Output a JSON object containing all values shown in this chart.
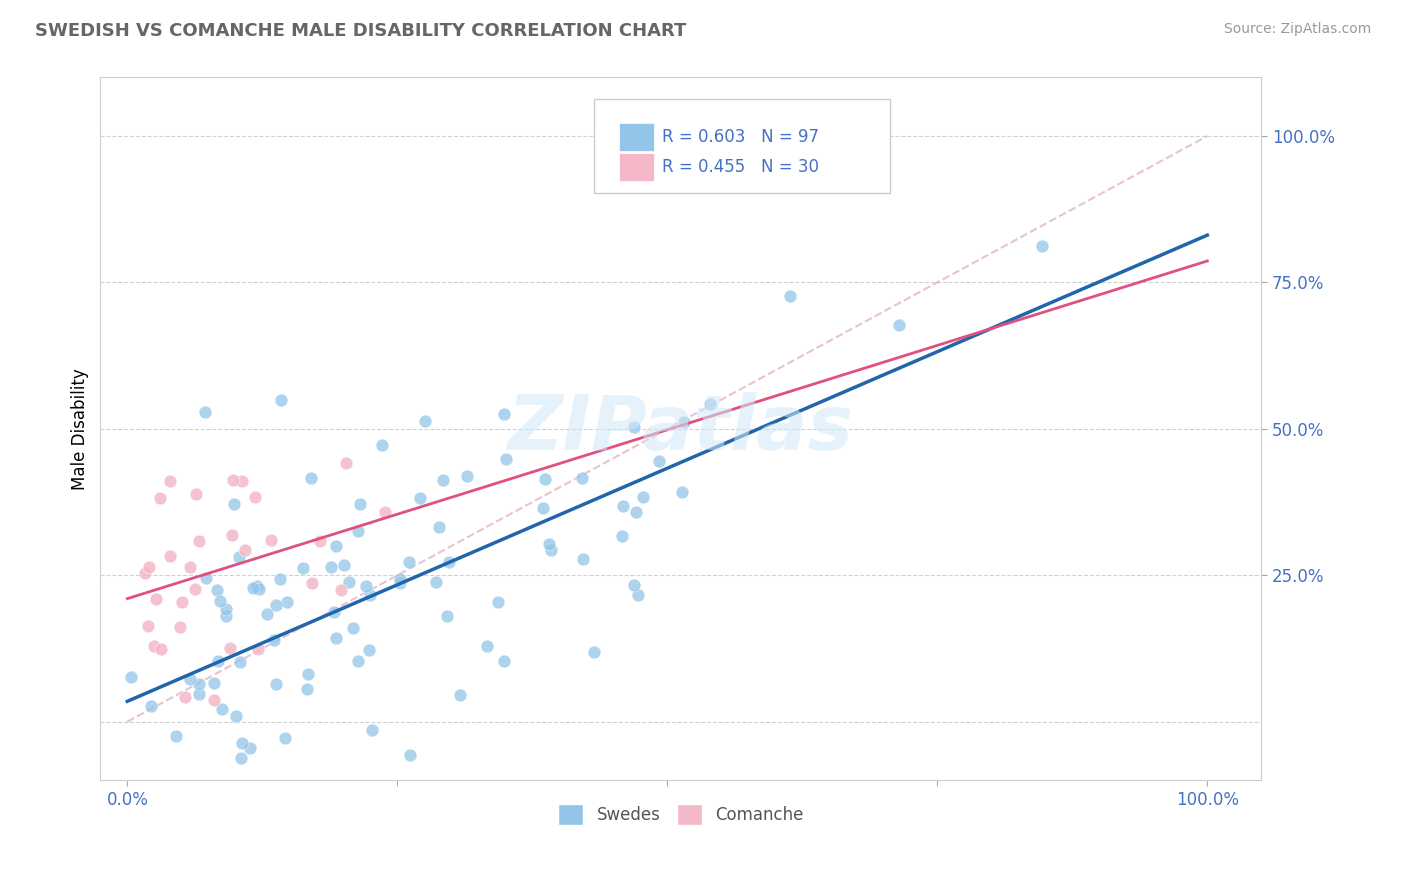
{
  "title": "SWEDISH VS COMANCHE MALE DISABILITY CORRELATION CHART",
  "source": "Source: ZipAtlas.com",
  "ylabel": "Male Disability",
  "swedes_color": "#92c5e8",
  "comanche_color": "#f4b8c8",
  "swedes_line_color": "#2166ac",
  "comanche_line_color": "#e05080",
  "ref_line_color": "#cccccc",
  "tick_label_color": "#4472c4",
  "title_color": "#666666",
  "background_color": "#ffffff",
  "grid_color": "#cccccc",
  "legend_R_swedes": "R = 0.603",
  "legend_N_swedes": "N = 97",
  "legend_R_comanche": "R = 0.455",
  "legend_N_comanche": "N = 30",
  "swedes_N": 97,
  "comanche_N": 30,
  "swedes_R": 0.603,
  "comanche_R": 0.455,
  "watermark": "ZIPatlas"
}
